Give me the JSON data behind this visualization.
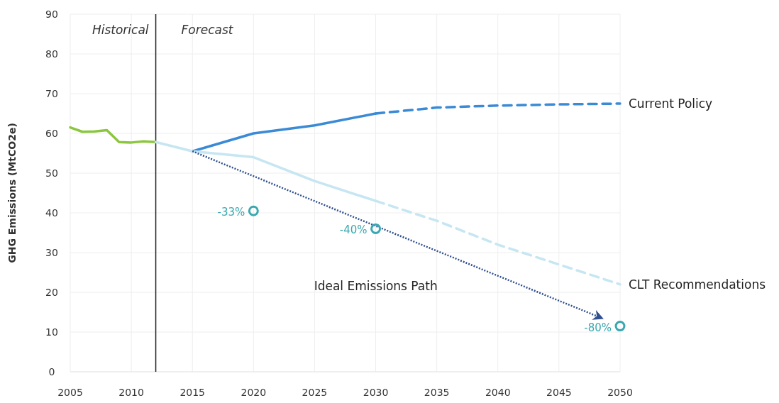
{
  "chart_data": {
    "type": "line",
    "ylabel": "GHG Emissions (MtCO2e)",
    "xlim": [
      2005,
      2050
    ],
    "ylim": [
      0,
      90
    ],
    "xticks": [
      2005,
      2010,
      2015,
      2020,
      2025,
      2030,
      2035,
      2040,
      2045,
      2050
    ],
    "yticks": [
      0,
      10,
      20,
      30,
      40,
      50,
      60,
      70,
      80,
      90
    ],
    "grid": true,
    "series": [
      {
        "color": "#8cc63f",
        "line_style": "solid",
        "x": [
          2005,
          2006,
          2007,
          2008,
          2009,
          2010,
          2011,
          2012
        ],
        "values": [
          61.5,
          60.4,
          60.5,
          60.8,
          57.8,
          57.7,
          58.0,
          57.8
        ]
      },
      {
        "color": "#3a8ad6",
        "line_style": "solid",
        "x": [
          2015,
          2020,
          2025,
          2030
        ],
        "values": [
          55.5,
          60,
          62,
          65
        ]
      },
      {
        "name": "Current Policy",
        "color": "#3a8ad6",
        "line_style": "dashed",
        "x": [
          2030,
          2035,
          2040,
          2045,
          2050
        ],
        "values": [
          65,
          66.5,
          67,
          67.3,
          67.5
        ]
      },
      {
        "color": "#c6e6f2",
        "line_style": "solid",
        "x": [
          2012,
          2015,
          2020,
          2025,
          2030
        ],
        "values": [
          57.8,
          55.5,
          54,
          48,
          43
        ]
      },
      {
        "name": "CLT Recommendations",
        "color": "#c6e6f2",
        "line_style": "dashed",
        "x": [
          2030,
          2035,
          2040,
          2045,
          2050
        ],
        "values": [
          43,
          38,
          32,
          27,
          22
        ]
      },
      {
        "name": "Ideal Emissions Path",
        "color": "#2f4f8f",
        "line_style": "dotted",
        "x": [
          2015,
          2048.5
        ],
        "values": [
          55.5,
          13.5
        ]
      },
      {
        "type": "scatter",
        "marker": "circle",
        "color": "#3aa8b0",
        "x": [
          2020,
          2030,
          2050
        ],
        "values": [
          40.5,
          36,
          11.5
        ]
      }
    ],
    "ref_lines": [
      {
        "axis": "x",
        "value": 2012,
        "color": "#222222",
        "line_style": "solid"
      }
    ],
    "annotations": [
      "Historical",
      "Forecast",
      {
        "text": "-33%",
        "x": 2020,
        "y": 40.5
      },
      {
        "text": "-40%",
        "x": 2030,
        "y": 36
      },
      {
        "text": "-80%",
        "x": 2050,
        "y": 11.5
      }
    ]
  }
}
